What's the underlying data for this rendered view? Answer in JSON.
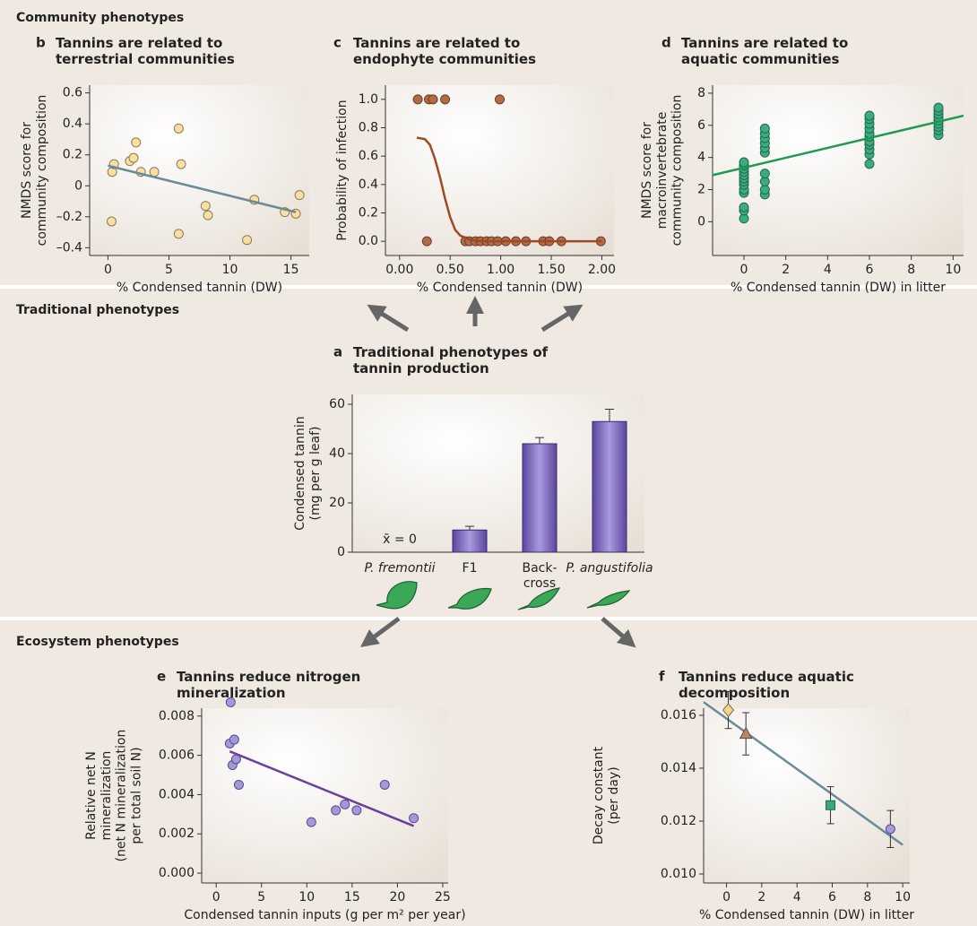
{
  "sections": [
    "Community phenotypes",
    "Traditional phenotypes",
    "Ecosystem phenotypes"
  ],
  "chart_data": [
    {
      "type": "scatter",
      "panel": "b",
      "title": "Tannins are related to\nterrestrial communities",
      "xlabel": "% Condensed tannin (DW)",
      "ylabel": "NMDS score for\ncommunity composition",
      "xlim": [
        -1.5,
        16.5
      ],
      "ylim": [
        -0.45,
        0.65
      ],
      "xticks": [
        0,
        5,
        10,
        15
      ],
      "yticks": [
        {
          "value": -0.4,
          "label": "–0.4"
        },
        {
          "value": -0.2,
          "label": "–0.2"
        },
        0,
        0.2,
        0.4,
        0.6
      ],
      "series": [
        {
          "kind": "points",
          "color": "#f9dfa1",
          "stroke": "#8a7a55",
          "x": [
            0.35,
            0.5,
            0.3,
            1.8,
            2.1,
            2.3,
            2.7,
            3.8,
            5.8,
            6.0,
            5.8,
            8.0,
            8.2,
            12.0,
            11.4,
            14.5,
            15.4,
            15.7
          ],
          "values": [
            0.09,
            0.14,
            -0.23,
            0.16,
            0.18,
            0.28,
            0.09,
            0.09,
            0.37,
            0.14,
            -0.31,
            -0.13,
            -0.19,
            -0.09,
            -0.35,
            -0.17,
            -0.18,
            -0.06
          ]
        },
        {
          "kind": "line",
          "color": "#6b8a99",
          "x": [
            0,
            15.4
          ],
          "values": [
            0.13,
            -0.17
          ]
        }
      ]
    },
    {
      "type": "scatter",
      "panel": "c",
      "title": "Tannins are related to\nendophyte communities",
      "xlabel": "% Condensed tannin (DW)",
      "ylabel": "Probability of infection",
      "xlim": [
        -0.14,
        2.12
      ],
      "ylim": [
        -0.1,
        1.1
      ],
      "xticks": [
        {
          "value": 0,
          "label": "0.00"
        },
        {
          "value": 0.5,
          "label": "0.50"
        },
        {
          "value": 1,
          "label": "1.00"
        },
        {
          "value": 1.5,
          "label": "1.50"
        },
        {
          "value": 2,
          "label": "2.00"
        }
      ],
      "yticks": [
        {
          "value": 0,
          "label": "0.0"
        },
        0.2,
        0.4,
        0.6,
        0.8,
        {
          "value": 1,
          "label": "1.0"
        }
      ],
      "series": [
        {
          "kind": "points",
          "color": "#b06b4a",
          "stroke": "#6e3b22",
          "x": [
            0.18,
            0.29,
            0.33,
            0.45,
            0.99,
            0.27,
            0.65,
            0.69,
            0.75,
            0.8,
            0.86,
            0.91,
            0.97,
            1.05,
            1.15,
            1.25,
            1.42,
            1.48,
            1.6,
            1.99
          ],
          "values": [
            1,
            1,
            1,
            1,
            1,
            0,
            0,
            0,
            0,
            0,
            0,
            0,
            0,
            0,
            0,
            0,
            0,
            0,
            0,
            0
          ]
        },
        {
          "kind": "line",
          "color": "#a04a25",
          "x": [
            0.17,
            0.25,
            0.3,
            0.35,
            0.4,
            0.45,
            0.5,
            0.55,
            0.6,
            0.7,
            0.8,
            1.0,
            1.5,
            2.0
          ],
          "values": [
            0.73,
            0.72,
            0.68,
            0.58,
            0.45,
            0.3,
            0.17,
            0.08,
            0.04,
            0.01,
            0,
            0,
            0,
            0
          ]
        }
      ]
    },
    {
      "type": "scatter",
      "panel": "d",
      "title": "Tannins are related to\naquatic communities",
      "xlabel": "% Condensed tannin (DW) in litter",
      "ylabel": "NMDS score for\nmacroinvertebrate\ncommunity composition",
      "xlim": [
        -1.5,
        10.5
      ],
      "ylim": [
        -2.1,
        8.5
      ],
      "xticks": [
        0,
        2,
        4,
        6,
        8,
        10
      ],
      "yticks": [
        0,
        2,
        4,
        6,
        8
      ],
      "series": [
        {
          "kind": "points",
          "color": "#3dab82",
          "stroke": "#1d6b4c",
          "x": [
            0,
            0,
            0,
            0,
            0,
            0,
            0,
            0,
            0,
            0,
            0,
            0,
            0,
            1,
            1,
            1,
            1,
            1,
            1,
            1,
            1,
            1,
            1,
            6,
            6,
            6,
            6,
            6,
            6,
            6,
            6,
            6,
            6,
            6,
            9.3,
            9.3,
            9.3,
            9.3,
            9.3,
            9.3,
            9.3,
            9.3,
            9.3
          ],
          "values": [
            0.2,
            0.7,
            0.9,
            1.8,
            2.0,
            2.3,
            2.5,
            2.7,
            2.9,
            3.1,
            3.3,
            3.5,
            3.7,
            1.7,
            2.0,
            2.5,
            3.0,
            4.3,
            4.6,
            4.9,
            5.2,
            5.5,
            5.8,
            3.6,
            4.2,
            4.5,
            4.8,
            5.0,
            5.3,
            5.5,
            5.8,
            6.1,
            6.4,
            6.6,
            5.4,
            5.7,
            5.9,
            6.1,
            6.3,
            6.5,
            6.7,
            6.9,
            7.1
          ]
        },
        {
          "kind": "line",
          "color": "#1e9a53",
          "x": [
            -1.5,
            10.5
          ],
          "values": [
            2.9,
            6.6
          ]
        }
      ]
    },
    {
      "type": "bar",
      "panel": "a",
      "title": "Traditional phenotypes of\ntannin production",
      "ylabel": "Condensed tannin\n(mg per g leaf)",
      "categories": [
        "P. fremontii",
        "F1",
        "Back-\ncross",
        "P. angustifolia"
      ],
      "category_styles": [
        "italic",
        "normal",
        "normal",
        "italic"
      ],
      "values": [
        0,
        9,
        44,
        53
      ],
      "errors": [
        0,
        1.5,
        2.5,
        5
      ],
      "color": "#7b63b8",
      "annotation": "x̄ = 0",
      "ylim": [
        0,
        64
      ],
      "yticks": [
        0,
        20,
        40,
        60
      ]
    },
    {
      "type": "scatter",
      "panel": "e",
      "title": "Tannins reduce nitrogen\nmineralization",
      "xlabel": "Condensed tannin inputs (g per m² per year)",
      "ylabel": "Relative net N\nmineralization\n(net N mineralization\nper total soil N)",
      "xlim": [
        -1.6,
        25.6
      ],
      "ylim": [
        -0.0005,
        0.0084
      ],
      "xticks": [
        0,
        5,
        10,
        15,
        20,
        25
      ],
      "yticks": [
        {
          "value": 0,
          "label": "0.000"
        },
        {
          "value": 0.002,
          "label": "0.002"
        },
        {
          "value": 0.004,
          "label": "0.004"
        },
        {
          "value": 0.006,
          "label": "0.006"
        },
        {
          "value": 0.008,
          "label": "0.008"
        }
      ],
      "series": [
        {
          "kind": "points",
          "color": "#a598d8",
          "stroke": "#5b4b97",
          "x": [
            1.6,
            1.5,
            2.0,
            1.8,
            2.2,
            2.5,
            10.5,
            13.2,
            14.2,
            15.5,
            18.6,
            21.8
          ],
          "values": [
            0.0087,
            0.0066,
            0.0068,
            0.0055,
            0.0058,
            0.0045,
            0.0026,
            0.0032,
            0.0035,
            0.0032,
            0.0045,
            0.0028
          ]
        },
        {
          "kind": "line",
          "color": "#6a3fa0",
          "x": [
            1.5,
            21.8
          ],
          "values": [
            0.0062,
            0.0024
          ]
        }
      ]
    },
    {
      "type": "scatter",
      "panel": "f",
      "title": "Tannins reduce aquatic\ndecomposition",
      "xlabel": "% Condensed tannin (DW) in litter",
      "ylabel": "Decay constant\n(per day)",
      "xlim": [
        -1.3,
        10.4
      ],
      "ylim": [
        0.00966,
        0.01627
      ],
      "xticks": [
        0,
        2,
        4,
        6,
        8,
        10
      ],
      "yticks": [
        {
          "value": 0.01,
          "label": "0.010"
        },
        {
          "value": 0.012,
          "label": "0.012"
        },
        {
          "value": 0.014,
          "label": "0.014"
        },
        {
          "value": 0.016,
          "label": "0.016"
        }
      ],
      "series": [
        {
          "kind": "line",
          "color": "#6b8a99",
          "x": [
            -1.3,
            10
          ],
          "values": [
            0.0165,
            0.0111
          ]
        },
        {
          "kind": "points",
          "marker": "diamond",
          "color": "#f6d58e",
          "stroke": "#7a6a40",
          "x": [
            0.1
          ],
          "values": [
            0.0162
          ],
          "errors": [
            0.0007
          ]
        },
        {
          "kind": "points",
          "marker": "triangle",
          "color": "#b5866a",
          "stroke": "#6b4a35",
          "x": [
            1.1
          ],
          "values": [
            0.0153
          ],
          "errors": [
            0.0008
          ]
        },
        {
          "kind": "points",
          "marker": "square",
          "color": "#3aa77a",
          "stroke": "#1d6b4c",
          "x": [
            5.9
          ],
          "values": [
            0.0126
          ],
          "errors": [
            0.0007
          ]
        },
        {
          "kind": "points",
          "marker": "circle",
          "color": "#a79ad6",
          "stroke": "#5b4b97",
          "x": [
            9.3
          ],
          "values": [
            0.0117
          ],
          "errors": [
            0.0007
          ]
        }
      ]
    }
  ]
}
